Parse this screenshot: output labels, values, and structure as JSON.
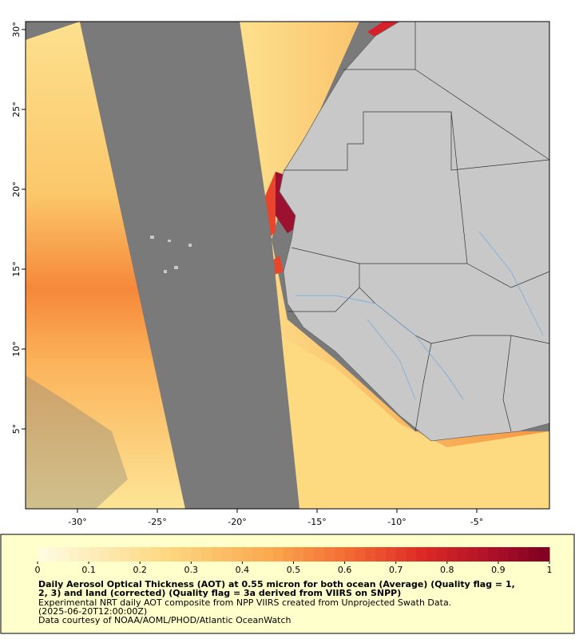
{
  "map": {
    "xlim": [
      -33.25,
      -0.45
    ],
    "ylim": [
      0,
      30.5
    ],
    "lon_ticks": [
      {
        "value": -30,
        "label": "-30°"
      },
      {
        "value": -25,
        "label": "-25°"
      },
      {
        "value": -20,
        "label": "-20°"
      },
      {
        "value": -15,
        "label": "-15°"
      },
      {
        "value": -10,
        "label": "-10°"
      },
      {
        "value": -5,
        "label": "-5°"
      }
    ],
    "lat_ticks": [
      {
        "value": 5,
        "label": "5°"
      },
      {
        "value": 10,
        "label": "10°"
      },
      {
        "value": 15,
        "label": "15°"
      },
      {
        "value": 20,
        "label": "20°"
      },
      {
        "value": 25,
        "label": "25°"
      },
      {
        "value": 30,
        "label": "30°"
      }
    ]
  },
  "colorbar": {
    "range": [
      0,
      1
    ],
    "ticks": [
      0,
      0.1,
      0.2,
      0.3,
      0.4,
      0.5,
      0.6,
      0.7,
      0.8,
      0.9,
      1
    ]
  },
  "caption": {
    "lines": [
      "Daily Aerosol Optical Thickness (AOT) at 0.55 micron for both ocean (Average) (Quality flag = 1,",
      "2, 3) and land (corrected) (Quality flag = 3a derived from VIIRS on SNPP)",
      "Experimental NRT daily AOT composite from NPP VIIRS created from Unprojected Swath Data.",
      "(2025-06-20T12:00:00Z)",
      "Data courtesy of NOAA/AOML/PHOD/Atlantic OceanWatch"
    ]
  }
}
